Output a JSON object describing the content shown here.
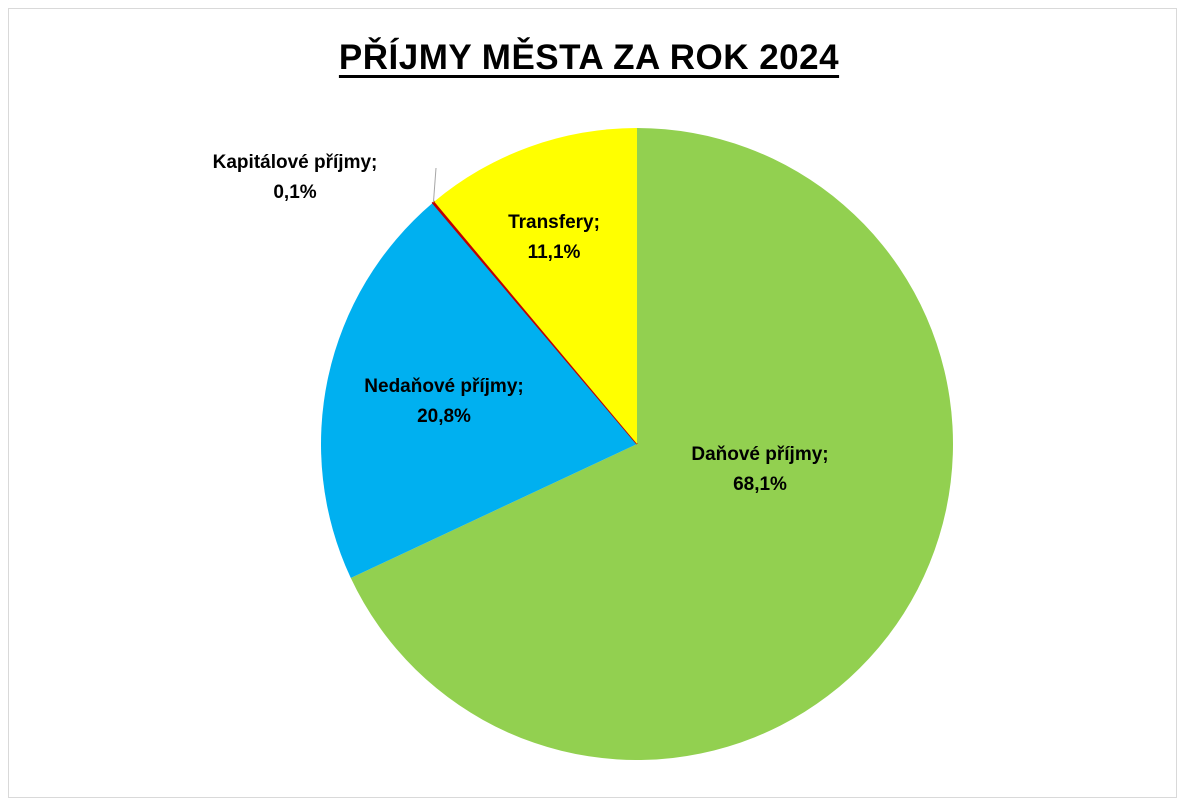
{
  "chart_data": {
    "type": "pie",
    "title": "PŘÍJMY MĚSTA ZA ROK 2024",
    "slices": [
      {
        "name": "Daňové příjmy",
        "value": 68.1,
        "label_name": "Daňové příjmy;",
        "label_value": "68,1%",
        "color": "#92d050"
      },
      {
        "name": "Nedaňové příjmy",
        "value": 20.8,
        "label_name": "Nedaňové příjmy;",
        "label_value": "20,8%",
        "color": "#00b0f0"
      },
      {
        "name": "Kapitálové příjmy",
        "value": 0.1,
        "label_name": "Kapitálové příjmy;",
        "label_value": "0,1%",
        "color": "#c00000"
      },
      {
        "name": "Transfery",
        "value": 11.1,
        "label_name": "Transfery;",
        "label_value": "11,1%",
        "color": "#ffff00"
      }
    ],
    "start_angle_deg": 0,
    "direction": "clockwise",
    "legend": "none"
  }
}
